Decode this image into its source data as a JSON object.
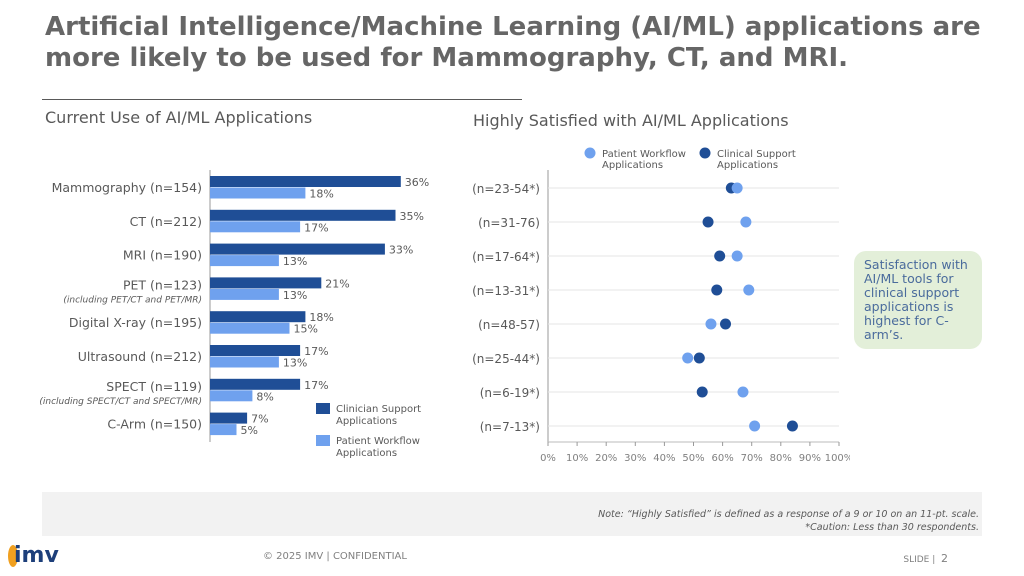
{
  "title": "Artificial Intelligence/Machine Learning (AI/ML) applications are more likely to be used for Mammography, CT, and MRI.",
  "callout": "Satisfaction with AI/ML tools for clinical support applications is highest for C-arm’s.",
  "note": [
    "Note: “Highly Satisfied” is defined as a response of a 9 or 10 on an 11-pt. scale.",
    "*Caution: Less than 30 respondents."
  ],
  "footer": {
    "copyright": "© 2025 IMV | CONFIDENTIAL",
    "slide_label": "SLIDE |",
    "slide_number": "2",
    "logo": "imv"
  },
  "colors": {
    "clinician": "#1f4e96",
    "patient": "#6fa1ee"
  },
  "chart_data": [
    {
      "type": "bar",
      "orientation": "horizontal",
      "title": "Current Use of AI/ML Applications",
      "categories": [
        "Mammography (n=154)",
        "CT (n=212)",
        "MRI (n=190)",
        "PET (n=123)",
        "Digital X-ray (n=195)",
        "Ultrasound (n=212)",
        "SPECT (n=119)",
        "C-Arm (n=150)"
      ],
      "sublabels": [
        "",
        "",
        "",
        "(including PET/CT and PET/MR)",
        "",
        "",
        "(including SPECT/CT and SPECT/MR)",
        ""
      ],
      "series": [
        {
          "name": "Clinician Support Applications",
          "values": [
            36,
            35,
            33,
            21,
            18,
            17,
            17,
            7
          ]
        },
        {
          "name": "Patient Workflow Applications",
          "values": [
            18,
            17,
            13,
            13,
            15,
            13,
            8,
            5
          ]
        }
      ],
      "value_labels": "percent",
      "legend": "bottom-right"
    },
    {
      "type": "scatter",
      "subtype": "dot-plot",
      "title": "Highly Satisfied with AI/ML Applications",
      "categories": [
        "(n=23-54*)",
        "(n=31-76)",
        "(n=17-64*)",
        "(n=13-31*)",
        "(n=48-57)",
        "(n=25-44*)",
        "(n=6-19*)",
        "(n=7-13*)"
      ],
      "series": [
        {
          "name": "Patient Workflow Applications",
          "values": [
            65,
            68,
            65,
            69,
            56,
            48,
            67,
            71
          ]
        },
        {
          "name": "Clinical Support Applications",
          "values": [
            63,
            55,
            59,
            58,
            61,
            52,
            53,
            84
          ]
        }
      ],
      "xlim": [
        0,
        100
      ],
      "xticks": [
        "0%",
        "10%",
        "20%",
        "30%",
        "40%",
        "50%",
        "60%",
        "70%",
        "80%",
        "90%",
        "100%"
      ],
      "grid": "horizontal",
      "legend": "top"
    }
  ]
}
